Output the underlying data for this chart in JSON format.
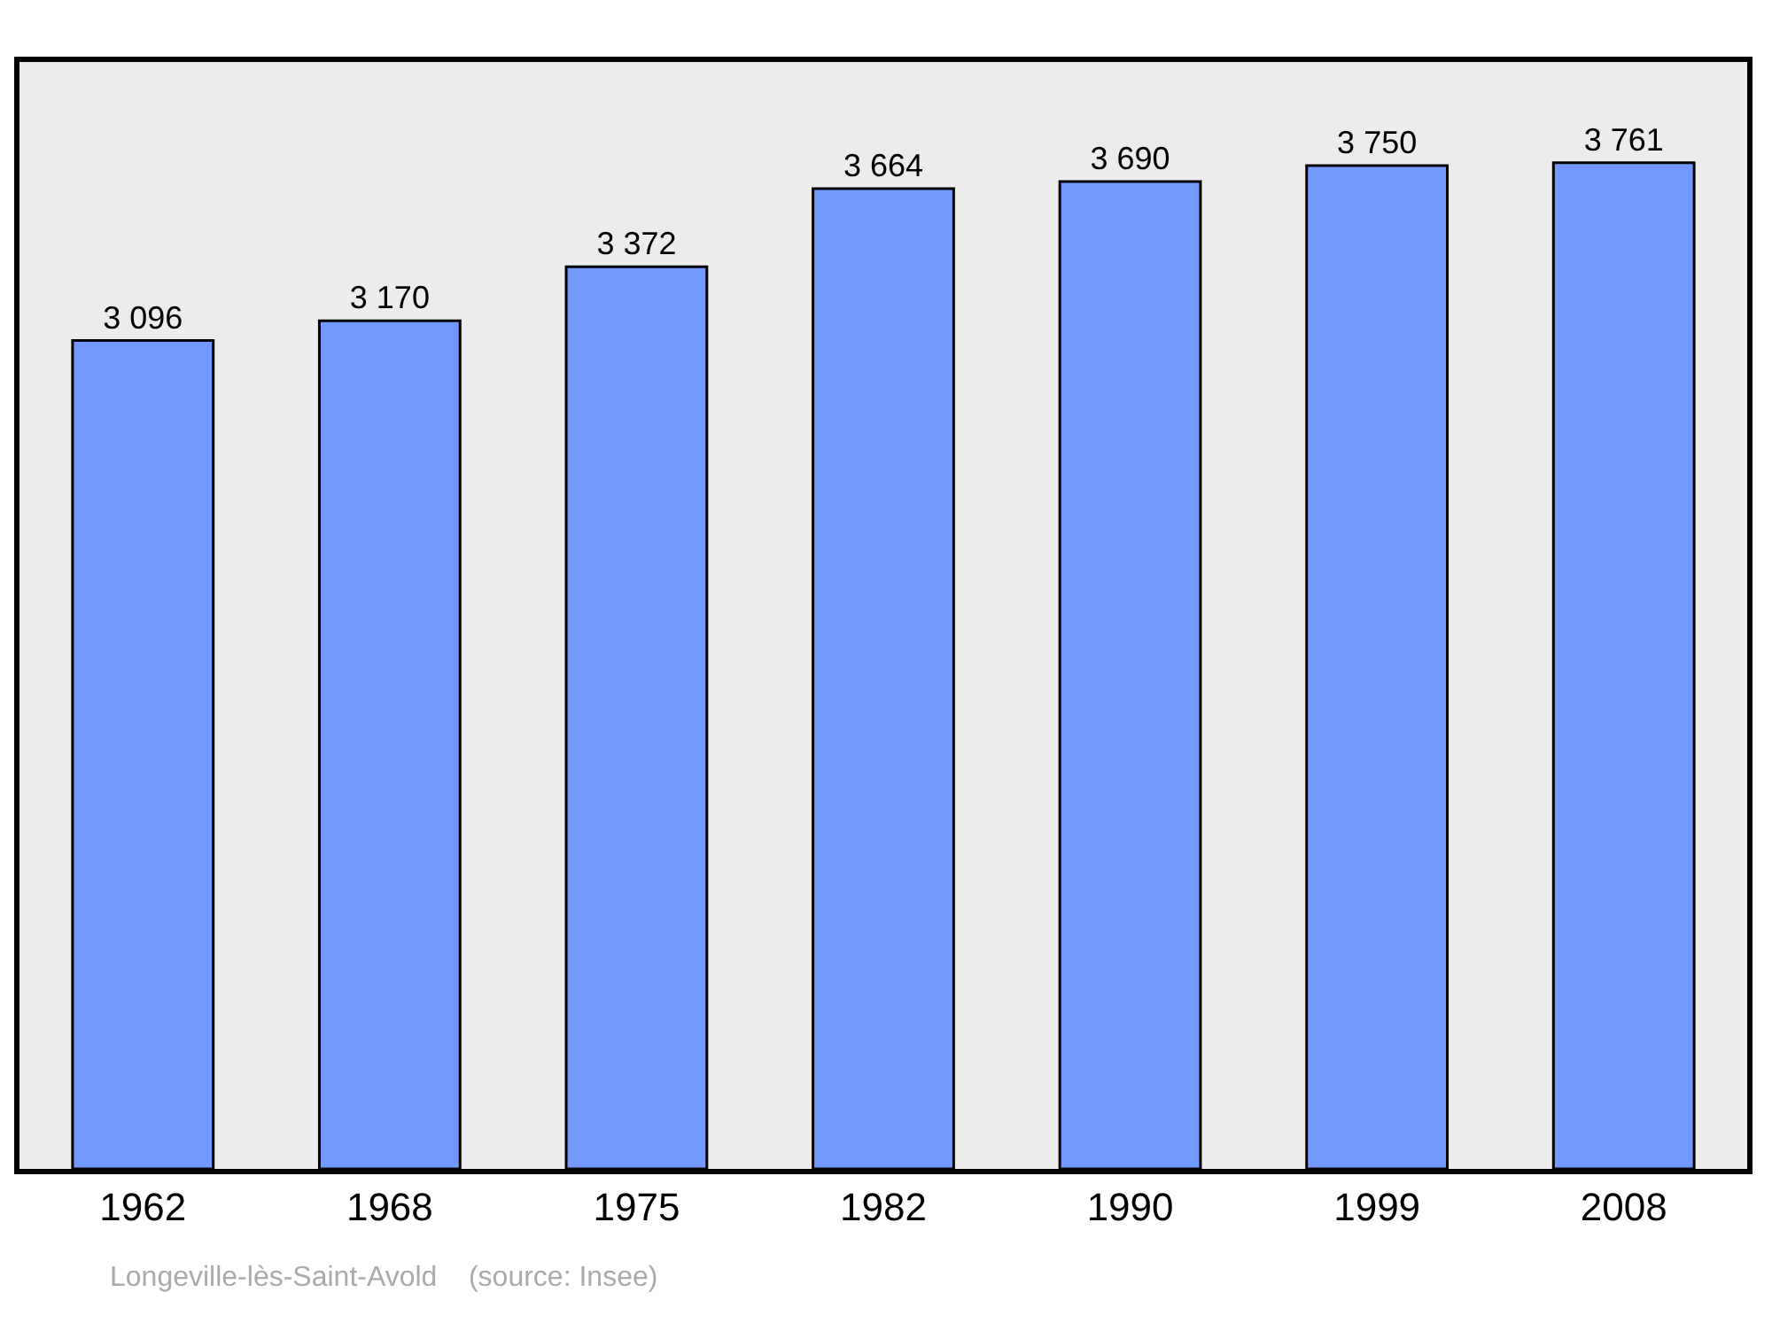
{
  "chart_data": {
    "type": "bar",
    "categories": [
      "1962",
      "1968",
      "1975",
      "1982",
      "1990",
      "1999",
      "2008"
    ],
    "values": [
      3096,
      3170,
      3372,
      3664,
      3690,
      3750,
      3761
    ],
    "value_labels": [
      "3 096",
      "3 170",
      "3 372",
      "3 664",
      "3 690",
      "3 750",
      "3 761"
    ],
    "color": "#7399ff",
    "grid": false,
    "legend": false,
    "annotations": [
      "Longeville-lès-Saint-Avold    (source: Insee)"
    ]
  }
}
